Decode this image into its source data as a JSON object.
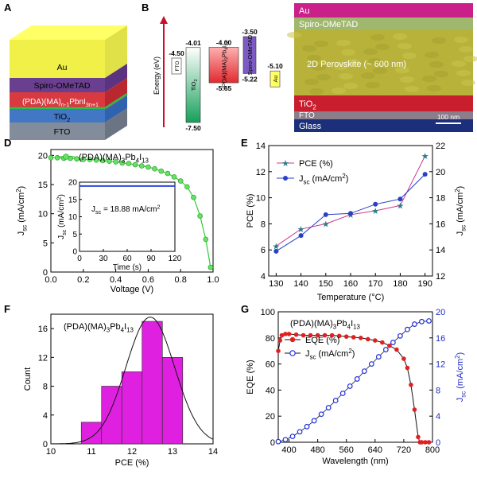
{
  "panels": {
    "A": {
      "letter": "A",
      "layers": [
        {
          "label": "Au",
          "color": "#ffff66",
          "side": "#e0e048",
          "front": "#f0f048"
        },
        {
          "label": "Spiro-OMeTAD",
          "color": "#7a4b9e",
          "side": "#5b3380",
          "front": "#6a3f8f"
        },
        {
          "label": "(PDA)(MA)n-1PbnI3n+1",
          "color": "#e8484d",
          "side": "#b8282e",
          "front": "#d83a40"
        },
        {
          "label": "TiO2",
          "color": "#5a8fd8",
          "side": "#2f63b0",
          "front": "#4277c4"
        },
        {
          "label": "FTO",
          "color": "#9aa3b0",
          "side": "#6b7482",
          "front": "#838c9a"
        }
      ],
      "green_line_color": "#2cc04a"
    },
    "B": {
      "letter": "B",
      "ylabel": "Energy (eV)",
      "blocks": [
        {
          "label": "FTO",
          "top": -4.5,
          "top_label": "-4.50",
          "bottom": null,
          "bottom_label": "",
          "color": "#ffffff"
        },
        {
          "label": "TiO2",
          "top": -4.01,
          "top_label": "-4.01",
          "bottom": -7.5,
          "bottom_label": "-7.50",
          "color": "#2ea86a"
        },
        {
          "label": "(PDA)(MA)3Pb4I13",
          "top": -4.0,
          "top_label": "-4.00",
          "bottom": -5.65,
          "bottom_label": "-5.65",
          "color": "#e8484d"
        },
        {
          "label": "Spiro-OMeTAD",
          "top": -3.5,
          "top_label": "-3.50",
          "bottom": -5.22,
          "bottom_label": "-5.22",
          "color": "#7c5cc4"
        },
        {
          "label": "Au",
          "top": -5.1,
          "top_label": "-5.10",
          "bottom": null,
          "bottom_label": "",
          "color": "#ffff66"
        }
      ]
    },
    "C": {
      "letter": "C",
      "labels": {
        "au": "Au",
        "spiro": "Spiro-OMeTAD",
        "perov": "2D Perovskite  (~ 600 nm)",
        "tio2": "TiO2",
        "fto": "FTO",
        "glass": "Glass",
        "scale": "100 nm"
      }
    },
    "D": {
      "letter": "D",
      "legend": "(PDA)(MA)3Pb4I13",
      "xlabel": "Voltage (V)",
      "ylabel": "Jsc (mA/cm²)",
      "xlim": [
        0,
        1.0
      ],
      "ylim": [
        0,
        21
      ],
      "xticks": [
        "0.0",
        "0.2",
        "0.4",
        "0.6",
        "0.8",
        "1.0"
      ],
      "xtick_vals": [
        0,
        0.2,
        0.4,
        0.6,
        0.8,
        1.0
      ],
      "yticks": [
        "0",
        "5",
        "10",
        "15",
        "20"
      ],
      "ytick_vals": [
        0,
        5,
        10,
        15,
        20
      ],
      "series": {
        "x": [
          0.0,
          0.04,
          0.08,
          0.12,
          0.16,
          0.2,
          0.24,
          0.28,
          0.32,
          0.36,
          0.4,
          0.44,
          0.48,
          0.52,
          0.56,
          0.6,
          0.64,
          0.68,
          0.72,
          0.76,
          0.8,
          0.84,
          0.88,
          0.92,
          0.955,
          0.985
        ],
        "y": [
          19.6,
          19.6,
          19.5,
          19.5,
          19.4,
          19.3,
          19.3,
          19.2,
          19.1,
          19.0,
          18.9,
          18.7,
          18.6,
          18.4,
          18.2,
          18.0,
          17.7,
          17.3,
          16.9,
          16.3,
          15.6,
          14.6,
          12.8,
          9.6,
          5.6,
          0.8
        ]
      },
      "inset": {
        "xlabel": "Time (s)",
        "ylabel": "Jsc (mA/cm²)",
        "xticks": [
          "0",
          "30",
          "60",
          "90",
          "120"
        ],
        "xtick_vals": [
          0,
          30,
          60,
          90,
          120
        ],
        "yticks": [
          "0",
          "5",
          "10",
          "15",
          "20"
        ],
        "ytick_vals": [
          0,
          5,
          10,
          15,
          20
        ],
        "xlim": [
          0,
          120
        ],
        "ylim": [
          0,
          20
        ],
        "value": 18.88,
        "annotation": "Jsc = 18.88 mA/cm²"
      }
    },
    "E": {
      "letter": "E",
      "xlabel": "Temperature (°C)",
      "ylabel_left": "PCE (%)",
      "ylabel_right": "Jsc (mA/cm²)",
      "x": [
        130,
        140,
        150,
        160,
        170,
        180,
        190
      ],
      "xticks": [
        "130",
        "140",
        "150",
        "160",
        "170",
        "180",
        "190"
      ],
      "ylim_left": [
        4,
        14
      ],
      "yticks_left": [
        "4",
        "6",
        "8",
        "10",
        "12",
        "14"
      ],
      "ytick_left_vals": [
        4,
        6,
        8,
        10,
        12,
        14
      ],
      "ylim_right": [
        12,
        22
      ],
      "yticks_right": [
        "12",
        "14",
        "16",
        "18",
        "20",
        "22"
      ],
      "ytick_right_vals": [
        12,
        14,
        16,
        18,
        20,
        22
      ],
      "series": [
        {
          "name": "PCE (%)",
          "axis": "left",
          "values": [
            6.3,
            7.6,
            8.0,
            8.7,
            9.0,
            9.4,
            13.2
          ],
          "color": "#d03a8a"
        },
        {
          "name": "Jsc (mA/cm²)",
          "axis": "right",
          "values": [
            13.9,
            15.1,
            16.7,
            16.8,
            17.5,
            17.9,
            19.8
          ],
          "color": "#2a3fc8"
        }
      ]
    },
    "F": {
      "letter": "F",
      "legend": "(PDA)(MA)3Pb4I13",
      "xlabel": "PCE (%)",
      "ylabel": "Count",
      "xlim": [
        10,
        14
      ],
      "ylim": [
        0,
        18
      ],
      "xticks": [
        "10",
        "11",
        "12",
        "13",
        "14"
      ],
      "xtick_vals": [
        10,
        11,
        12,
        13,
        14
      ],
      "yticks": [
        "0",
        "4",
        "8",
        "12",
        "16"
      ],
      "ytick_vals": [
        0,
        4,
        8,
        12,
        16
      ],
      "bins": [
        {
          "x0": 10.75,
          "x1": 11.25,
          "count": 3
        },
        {
          "x0": 11.25,
          "x1": 11.75,
          "count": 8
        },
        {
          "x0": 11.75,
          "x1": 12.25,
          "count": 10
        },
        {
          "x0": 12.25,
          "x1": 12.75,
          "count": 17
        },
        {
          "x0": 12.75,
          "x1": 13.25,
          "count": 12
        }
      ],
      "fit": {
        "mean": 12.45,
        "sigma": 0.6,
        "peak": 17.6
      },
      "bar_color": "#e020e0"
    },
    "G": {
      "letter": "G",
      "legend": "(PDA)(MA)3Pb4I13",
      "xlabel": "Wavelength (nm)",
      "ylabel_left": "EQE (%)",
      "ylabel_right": "Jsc (mA/cm²)",
      "xlim": [
        370,
        800
      ],
      "xticks": [
        "400",
        "480",
        "560",
        "640",
        "720",
        "800"
      ],
      "xtick_vals": [
        400,
        480,
        560,
        640,
        720,
        800
      ],
      "ylim_left": [
        0,
        100
      ],
      "yticks_left": [
        "0",
        "20",
        "40",
        "60",
        "80",
        "100"
      ],
      "ytick_left_vals": [
        0,
        20,
        40,
        60,
        80,
        100
      ],
      "ylim_right": [
        0,
        20
      ],
      "yticks_right": [
        "0",
        "4",
        "8",
        "12",
        "16",
        "20"
      ],
      "ytick_right_vals": [
        0,
        4,
        8,
        12,
        16,
        20
      ],
      "series": [
        {
          "name": "EQE (%)",
          "axis": "left",
          "color": "#e02020",
          "x": [
            370,
            375,
            380,
            390,
            400,
            420,
            440,
            460,
            480,
            500,
            520,
            540,
            560,
            580,
            600,
            620,
            640,
            660,
            680,
            700,
            720,
            730,
            740,
            750,
            760,
            765,
            770,
            780,
            790
          ],
          "y": [
            70,
            78,
            82,
            83,
            83,
            82.5,
            82,
            82,
            82,
            82,
            82,
            81.5,
            81,
            80.5,
            80,
            79,
            78,
            76.5,
            74,
            71,
            64,
            57,
            44,
            25,
            4,
            0,
            0,
            0,
            0
          ]
        },
        {
          "name": "Jsc (mA/cm²)",
          "axis": "right",
          "color": "#2030e0",
          "x": [
            370,
            390,
            410,
            430,
            450,
            470,
            490,
            510,
            530,
            550,
            570,
            590,
            610,
            630,
            650,
            670,
            690,
            710,
            730,
            750,
            770,
            790
          ],
          "y": [
            0.1,
            0.4,
            0.9,
            1.6,
            2.4,
            3.3,
            4.3,
            5.3,
            6.4,
            7.5,
            8.6,
            9.7,
            10.9,
            12.0,
            13.1,
            14.2,
            15.3,
            16.3,
            17.3,
            18.1,
            18.5,
            18.6
          ]
        }
      ]
    }
  }
}
